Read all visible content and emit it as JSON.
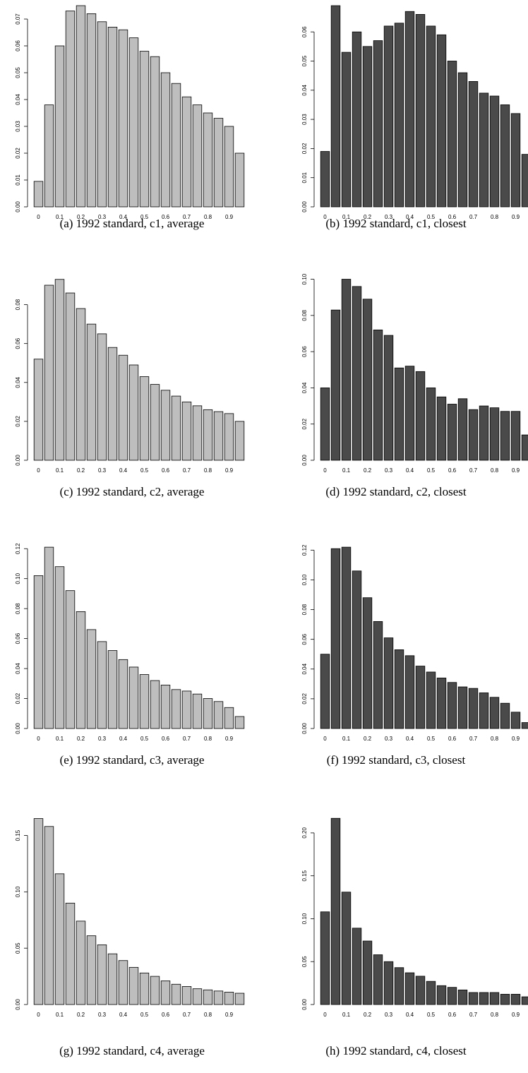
{
  "chart_data": [
    {
      "type": "bar",
      "caption": "(a) 1992 standard, c1, average",
      "color": "#bebebe",
      "categories": [
        "0",
        null,
        "0.1",
        null,
        "0.2",
        null,
        "0.3",
        null,
        "0.4",
        null,
        "0.5",
        null,
        "0.6",
        null,
        "0.7",
        null,
        "0.8",
        null,
        "0.9",
        null
      ],
      "values": [
        0.0095,
        0.038,
        0.06,
        0.073,
        0.075,
        0.072,
        0.069,
        0.067,
        0.066,
        0.063,
        0.058,
        0.056,
        0.05,
        0.046,
        0.041,
        0.038,
        0.035,
        0.033,
        0.03,
        0.02
      ],
      "ylim": [
        0,
        0.075
      ],
      "yticks": [
        {
          "value": 0,
          "label": "0.00"
        },
        0.01,
        0.02,
        0.03,
        0.04,
        0.05,
        0.06,
        0.07
      ]
    },
    {
      "type": "bar",
      "caption": "(b) 1992 standard, c1, closest",
      "color": "#4a4a4a",
      "categories": [
        "0",
        null,
        "0.1",
        null,
        "0.2",
        null,
        "0.3",
        null,
        "0.4",
        null,
        "0.5",
        null,
        "0.6",
        null,
        "0.7",
        null,
        "0.8",
        null,
        "0.9",
        null
      ],
      "values": [
        0.019,
        0.069,
        0.053,
        0.06,
        0.055,
        0.057,
        0.062,
        0.063,
        0.067,
        0.066,
        0.062,
        0.059,
        0.05,
        0.046,
        0.043,
        0.039,
        0.038,
        0.035,
        0.032,
        0.018
      ],
      "ylim": [
        0,
        0.069
      ],
      "yticks": [
        {
          "value": 0,
          "label": "0.00"
        },
        0.01,
        0.02,
        0.03,
        0.04,
        0.05,
        0.06
      ]
    },
    {
      "type": "bar",
      "caption": "(c) 1992 standard, c2, average",
      "color": "#bebebe",
      "categories": [
        "0",
        null,
        "0.1",
        null,
        "0.2",
        null,
        "0.3",
        null,
        "0.4",
        null,
        "0.5",
        null,
        "0.6",
        null,
        "0.7",
        null,
        "0.8",
        null,
        "0.9",
        null
      ],
      "values": [
        0.052,
        0.09,
        0.093,
        0.086,
        0.078,
        0.07,
        0.065,
        0.058,
        0.054,
        0.049,
        0.043,
        0.039,
        0.036,
        0.033,
        0.03,
        0.028,
        0.026,
        0.025,
        0.024,
        0.02
      ],
      "ylim": [
        0,
        0.094
      ],
      "yticks": [
        {
          "value": 0,
          "label": "0.00"
        },
        0.02,
        0.04,
        0.06,
        0.08
      ]
    },
    {
      "type": "bar",
      "caption": "(d) 1992 standard, c2, closest",
      "color": "#4a4a4a",
      "categories": [
        "0",
        null,
        "0.1",
        null,
        "0.2",
        null,
        "0.3",
        null,
        "0.4",
        null,
        "0.5",
        null,
        "0.6",
        null,
        "0.7",
        null,
        "0.8",
        null,
        "0.9",
        null
      ],
      "values": [
        0.04,
        0.083,
        0.1,
        0.096,
        0.089,
        0.072,
        0.069,
        0.051,
        0.052,
        0.049,
        0.04,
        0.035,
        0.031,
        0.034,
        0.028,
        0.03,
        0.029,
        0.027,
        0.027,
        0.014
      ],
      "ylim": [
        0,
        0.101
      ],
      "yticks": [
        {
          "value": 0,
          "label": "0.00"
        },
        0.02,
        0.04,
        0.06,
        0.08,
        {
          "value": 0.1,
          "label": "0.10"
        }
      ]
    },
    {
      "type": "bar",
      "caption": "(e) 1992 standard, c3, average",
      "color": "#bebebe",
      "categories": [
        "0",
        null,
        "0.1",
        null,
        "0.2",
        null,
        "0.3",
        null,
        "0.4",
        null,
        "0.5",
        null,
        "0.6",
        null,
        "0.7",
        null,
        "0.8",
        null,
        "0.9",
        null
      ],
      "values": [
        0.102,
        0.121,
        0.108,
        0.092,
        0.078,
        0.066,
        0.058,
        0.052,
        0.046,
        0.041,
        0.036,
        0.032,
        0.029,
        0.026,
        0.025,
        0.023,
        0.02,
        0.018,
        0.014,
        0.008
      ],
      "ylim": [
        0,
        0.122
      ],
      "yticks": [
        {
          "value": 0,
          "label": "0.00"
        },
        0.02,
        0.04,
        0.06,
        0.08,
        {
          "value": 0.1,
          "label": "0.10"
        },
        0.12
      ]
    },
    {
      "type": "bar",
      "caption": "(f) 1992 standard, c3, closest",
      "color": "#4a4a4a",
      "categories": [
        "0",
        null,
        "0.1",
        null,
        "0.2",
        null,
        "0.3",
        null,
        "0.4",
        null,
        "0.5",
        null,
        "0.6",
        null,
        "0.7",
        null,
        "0.8",
        null,
        "0.9",
        null
      ],
      "values": [
        0.05,
        0.121,
        0.122,
        0.106,
        0.088,
        0.072,
        0.061,
        0.053,
        0.049,
        0.042,
        0.038,
        0.034,
        0.031,
        0.028,
        0.027,
        0.024,
        0.021,
        0.017,
        0.011,
        0.004
      ],
      "ylim": [
        0,
        0.123
      ],
      "yticks": [
        {
          "value": 0,
          "label": "0.00"
        },
        0.02,
        0.04,
        0.06,
        0.08,
        {
          "value": 0.1,
          "label": "0.10"
        },
        0.12
      ]
    },
    {
      "type": "bar",
      "caption": "(g) 1992 standard, c4, average",
      "color": "#bebebe",
      "categories": [
        "0",
        null,
        "0.1",
        null,
        "0.2",
        null,
        "0.3",
        null,
        "0.4",
        null,
        "0.5",
        null,
        "0.6",
        null,
        "0.7",
        null,
        "0.8",
        null,
        "0.9",
        null
      ],
      "values": [
        0.165,
        0.158,
        0.116,
        0.09,
        0.074,
        0.061,
        0.053,
        0.045,
        0.039,
        0.033,
        0.028,
        0.025,
        0.021,
        0.018,
        0.016,
        0.014,
        0.013,
        0.012,
        0.011,
        0.01
      ],
      "ylim": [
        0,
        0.166
      ],
      "yticks": [
        {
          "value": 0,
          "label": "0.00"
        },
        0.05,
        {
          "value": 0.1,
          "label": "0.10"
        },
        0.15
      ]
    },
    {
      "type": "bar",
      "caption": "(h) 1992 standard, c4, closest",
      "color": "#4a4a4a",
      "categories": [
        "0",
        null,
        "0.1",
        null,
        "0.2",
        null,
        "0.3",
        null,
        "0.4",
        null,
        "0.5",
        null,
        "0.6",
        null,
        "0.7",
        null,
        "0.8",
        null,
        "0.9",
        null
      ],
      "values": [
        0.108,
        0.217,
        0.131,
        0.089,
        0.074,
        0.058,
        0.05,
        0.043,
        0.037,
        0.033,
        0.027,
        0.022,
        0.02,
        0.017,
        0.014,
        0.014,
        0.014,
        0.012,
        0.012,
        0.009
      ],
      "ylim": [
        0,
        0.218
      ],
      "yticks": [
        {
          "value": 0,
          "label": "0.00"
        },
        0.05,
        {
          "value": 0.1,
          "label": "0.10"
        },
        0.15,
        {
          "value": 0.2,
          "label": "0.20"
        }
      ]
    }
  ]
}
